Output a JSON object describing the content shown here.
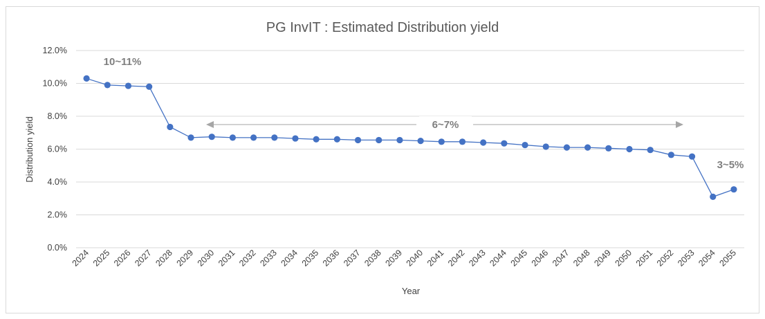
{
  "chart_data": {
    "type": "line",
    "title": "PG InvIT : Estimated Distribution yield",
    "xlabel": "Year",
    "ylabel": "Distribution yield",
    "ylim": [
      0,
      12
    ],
    "yticks": [
      "0.0%",
      "2.0%",
      "4.0%",
      "6.0%",
      "8.0%",
      "10.0%",
      "12.0%"
    ],
    "grid": true,
    "legend": "none",
    "x": [
      "2024",
      "2025",
      "2026",
      "2027",
      "2028",
      "2029",
      "2030",
      "2031",
      "2032",
      "2033",
      "2034",
      "2035",
      "2036",
      "2037",
      "2038",
      "2039",
      "2040",
      "2041",
      "2042",
      "2043",
      "2044",
      "2045",
      "2046",
      "2047",
      "2048",
      "2049",
      "2050",
      "2051",
      "2052",
      "2053",
      "2054",
      "2055"
    ],
    "series": [
      {
        "values": [
          10.3,
          9.9,
          9.85,
          9.8,
          7.35,
          6.7,
          6.75,
          6.7,
          6.7,
          6.7,
          6.65,
          6.6,
          6.6,
          6.55,
          6.55,
          6.55,
          6.5,
          6.45,
          6.45,
          6.4,
          6.35,
          6.25,
          6.15,
          6.1,
          6.1,
          6.05,
          6.0,
          5.95,
          5.65,
          5.55,
          3.1,
          3.55
        ],
        "color": "#4472c4"
      }
    ],
    "annotations": [
      {
        "text": "10~11%"
      },
      {
        "text": "6~7%"
      },
      {
        "text": "3~5%"
      }
    ],
    "colors": {
      "line": "#4472c4",
      "grid": "#d9d9d9",
      "arrow": "#a6a6a6",
      "annotation": "#7f7f7f"
    }
  }
}
